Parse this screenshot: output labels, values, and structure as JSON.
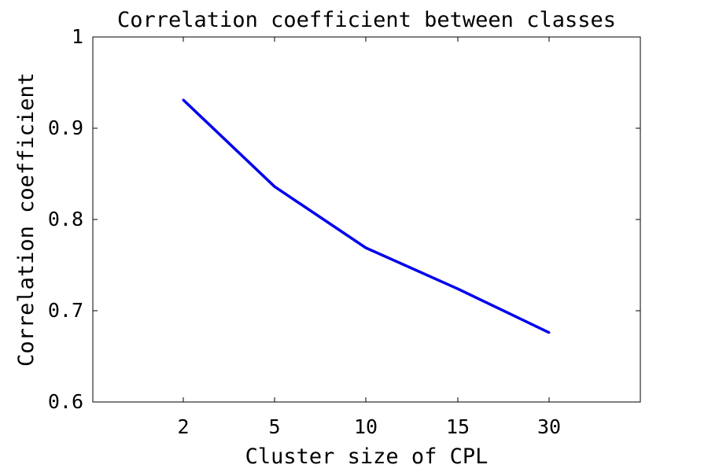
{
  "chart_data": {
    "type": "line",
    "title": "Correlation coefficient between classes",
    "xlabel": "Cluster size of CPL",
    "ylabel": "Correlation coefficient",
    "x_type": "categorical",
    "categories": [
      "2",
      "5",
      "10",
      "15",
      "30"
    ],
    "series": [
      {
        "values": [
          0.931,
          0.836,
          0.769,
          0.724,
          0.676
        ],
        "color": "#0000ee"
      }
    ],
    "ylim": [
      0.6,
      1.0
    ],
    "yticks": [
      "0.6",
      "0.7",
      "0.8",
      "0.9",
      "1"
    ],
    "grid": false,
    "legend": "none"
  }
}
